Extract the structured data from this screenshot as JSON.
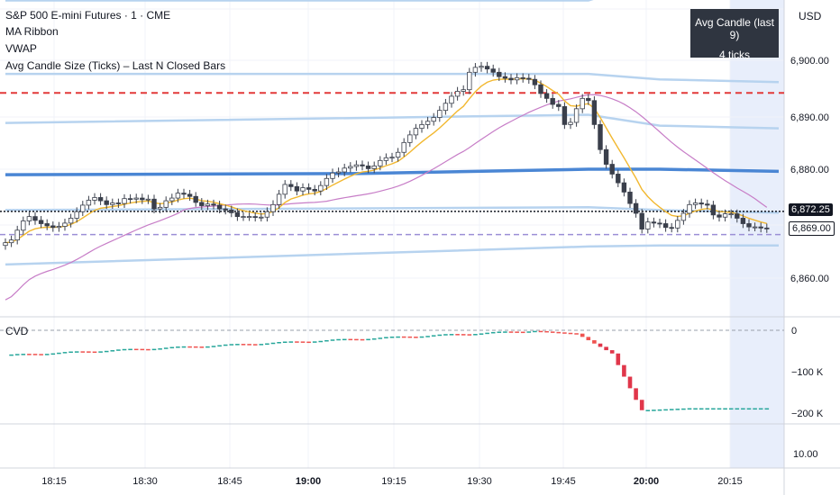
{
  "header": {
    "symbol_title": "S&P 500 E-mini Futures · 1 · CME",
    "indicators": [
      "MA Ribbon",
      "VWAP",
      "Avg Candle Size (Ticks) – Last N Closed Bars"
    ]
  },
  "avg_box": {
    "title": "Avg Candle (last 9)",
    "value": "4 ticks"
  },
  "price_axis": {
    "currency": "USD",
    "ticks": [
      "6,900.00",
      "6,890.00",
      "6,880.00",
      "6,860.00"
    ]
  },
  "price_tags": {
    "last": "6,872.25",
    "other": "6,869.00"
  },
  "cvd": {
    "label": "CVD",
    "axis_ticks": [
      "0",
      "−100 K",
      "−200 K"
    ]
  },
  "third_pane": {
    "tick": "10.00"
  },
  "time_axis": {
    "labels": [
      "18:15",
      "18:30",
      "18:45",
      "19:00",
      "19:15",
      "19:30",
      "19:45",
      "20:00",
      "20:15"
    ],
    "bold": [
      "19:00",
      "20:00"
    ]
  },
  "colors": {
    "bull": "#26a69a",
    "bear": "#ef5350",
    "ma_fast": "#f2b830",
    "ma_slow": "#c77dc7",
    "vwap": "#4a86d4",
    "band": "#b7d3ef",
    "level_red": "#e23a3a",
    "level_purple": "#9b8fd6",
    "session_shade": "#e8eefb",
    "cvd_drop": "#e0364a"
  },
  "chart_data": [
    {
      "type": "candlestick",
      "title": "S&P 500 E-mini Futures · 1 · CME",
      "x_time_labels": [
        "18:15",
        "18:30",
        "18:45",
        "19:00",
        "19:15",
        "19:30",
        "19:45",
        "20:00",
        "20:15"
      ],
      "ylim": [
        6855,
        6915
      ],
      "y_ticks": [
        6860,
        6880,
        6890,
        6900
      ],
      "start_time": "18:08",
      "end_time": "20:23",
      "close": [
        6866.5,
        6867.0,
        6868.8,
        6870.5,
        6871.3,
        6870.6,
        6870.0,
        6869.6,
        6869.3,
        6869.5,
        6870.1,
        6871.0,
        6872.2,
        6873.4,
        6874.3,
        6874.8,
        6874.2,
        6873.5,
        6873.8,
        6873.7,
        6874.6,
        6874.5,
        6874.7,
        6874.4,
        6874.5,
        6872.7,
        6873.0,
        6874.2,
        6874.7,
        6875.6,
        6875.4,
        6875.0,
        6873.9,
        6873.3,
        6873.6,
        6873.4,
        6872.7,
        6872.5,
        6872.0,
        6871.3,
        6871.3,
        6871.3,
        6871.2,
        6871.2,
        6872.2,
        6873.5,
        6875.4,
        6877.2,
        6876.8,
        6876.0,
        6876.6,
        6876.3,
        6876.0,
        6877.0,
        6878.3,
        6879.3,
        6879.5,
        6880.2,
        6880.5,
        6880.8,
        6880.6,
        6880.1,
        6880.6,
        6881.6,
        6882.1,
        6882.2,
        6883.1,
        6884.9,
        6886.3,
        6887.5,
        6888.2,
        6888.8,
        6889.5,
        6890.8,
        6892.1,
        6893.4,
        6894.3,
        6894.6,
        6897.8,
        6898.7,
        6898.9,
        6898.4,
        6897.8,
        6897.0,
        6896.7,
        6896.4,
        6896.8,
        6896.7,
        6896.5,
        6895.5,
        6893.9,
        6893.0,
        6891.9,
        6891.5,
        6888.2,
        6888.6,
        6891.1,
        6893.0,
        6892.6,
        6888.2,
        6883.6,
        6880.9,
        6879.1,
        6877.5,
        6875.8,
        6873.7,
        6871.9,
        6869.0,
        6870.3,
        6870.1,
        6870.0,
        6869.3,
        6869.2,
        6870.6,
        6871.9,
        6873.5,
        6873.8,
        6873.6,
        6873.4,
        6871.6,
        6871.2,
        6871.8,
        6871.8,
        6871.0,
        6870.0,
        6869.4,
        6869.4,
        6869.2,
        6869.1
      ],
      "open": [
        6866.0,
        6866.5,
        6867.0,
        6868.8,
        6870.5,
        6871.3,
        6870.6,
        6870.0,
        6869.6,
        6869.3,
        6869.5,
        6870.1,
        6871.0,
        6872.2,
        6873.4,
        6874.3,
        6874.8,
        6874.2,
        6873.5,
        6873.8,
        6873.7,
        6874.6,
        6874.5,
        6874.7,
        6874.4,
        6874.5,
        6872.7,
        6873.0,
        6874.2,
        6874.7,
        6875.6,
        6875.4,
        6875.0,
        6873.9,
        6873.3,
        6873.6,
        6873.4,
        6872.7,
        6872.5,
        6872.0,
        6871.3,
        6871.3,
        6871.3,
        6871.2,
        6871.2,
        6872.2,
        6873.5,
        6875.4,
        6877.2,
        6876.8,
        6876.0,
        6876.6,
        6876.3,
        6876.0,
        6877.0,
        6878.3,
        6879.3,
        6879.5,
        6880.2,
        6880.5,
        6880.8,
        6880.6,
        6880.1,
        6880.6,
        6881.6,
        6882.1,
        6882.2,
        6883.1,
        6884.9,
        6886.3,
        6887.5,
        6888.2,
        6888.8,
        6889.5,
        6890.8,
        6892.1,
        6893.4,
        6894.3,
        6894.6,
        6897.8,
        6898.7,
        6898.9,
        6898.4,
        6897.8,
        6897.0,
        6896.7,
        6896.4,
        6896.8,
        6896.7,
        6896.5,
        6895.5,
        6893.9,
        6893.0,
        6891.9,
        6891.5,
        6888.2,
        6888.6,
        6891.1,
        6893.0,
        6892.6,
        6888.2,
        6883.6,
        6880.9,
        6879.1,
        6877.5,
        6875.8,
        6873.7,
        6871.9,
        6869.0,
        6870.3,
        6870.1,
        6870.0,
        6869.3,
        6869.2,
        6870.6,
        6871.9,
        6873.5,
        6873.8,
        6873.6,
        6873.4,
        6871.6,
        6871.2,
        6871.8,
        6871.8,
        6871.0,
        6870.0,
        6869.4,
        6869.4,
        6869.2
      ],
      "levels": {
        "red_dashed": 6894.0,
        "purple_dashed": 6868.0,
        "last_price_dotted": 6872.25
      },
      "vwap_center": [
        [
          0,
          6879.0
        ],
        [
          60,
          6879.2
        ],
        [
          98,
          6880.0
        ],
        [
          110,
          6880.0
        ],
        [
          130,
          6879.6
        ]
      ],
      "bands": [
        [
          [
            0,
            6911.0
          ],
          [
            98,
            6911.0
          ],
          [
            110,
            6915.0
          ],
          [
            130,
            6915.0
          ]
        ],
        [
          [
            0,
            6897.5
          ],
          [
            98,
            6897.5
          ],
          [
            110,
            6896.5
          ],
          [
            130,
            6896.0
          ]
        ],
        [
          [
            0,
            6888.5
          ],
          [
            98,
            6890.0
          ],
          [
            110,
            6888.0
          ],
          [
            130,
            6887.5
          ]
        ],
        [
          [
            0,
            6872.5
          ],
          [
            98,
            6873.0
          ],
          [
            110,
            6872.5
          ],
          [
            130,
            6872.0
          ]
        ],
        [
          [
            0,
            6862.5
          ],
          [
            98,
            6865.8
          ],
          [
            110,
            6866.0
          ],
          [
            130,
            6866.0
          ]
        ]
      ]
    },
    {
      "type": "bar",
      "title": "CVD",
      "ylim": [
        -220000,
        10000
      ],
      "y_ticks": [
        0,
        -100000,
        -200000
      ],
      "description": "CVD drifts from about -60K up to near 0 by 19:40, then drops sharply to about -195K around 19:57 and flattens."
    }
  ]
}
